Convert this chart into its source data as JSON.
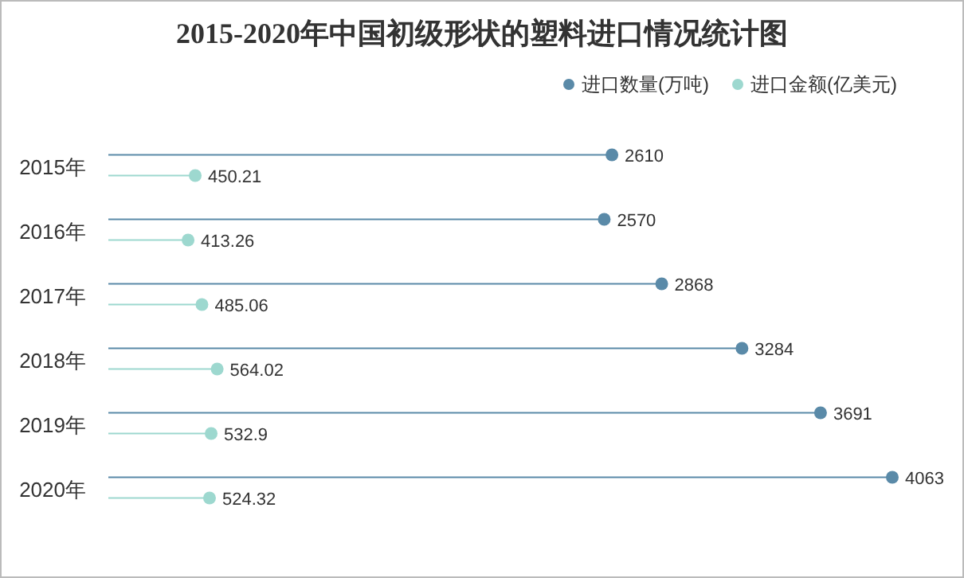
{
  "chart_data": {
    "type": "lollipop",
    "orientation": "horizontal",
    "title": "2015-2020年中国初级形状的塑料进口情况统计图",
    "categories": [
      "2015年",
      "2016年",
      "2017年",
      "2018年",
      "2019年",
      "2020年"
    ],
    "data_labels": true,
    "legend": "top right",
    "marker": "circle",
    "series": [
      {
        "name": "进口数量(万吨)",
        "color": "#5a8aa8",
        "values": [
          2610,
          2570,
          2868,
          3284,
          3691,
          4063
        ]
      },
      {
        "name": "进口金额(亿美元)",
        "color": "#9dd8cf",
        "values": [
          450.21,
          413.26,
          485.06,
          564.02,
          532.9,
          524.32
        ]
      }
    ]
  }
}
